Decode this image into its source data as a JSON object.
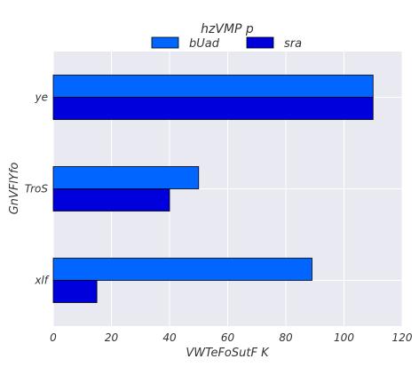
{
  "chart_data": {
    "type": "bar",
    "orientation": "horizontal",
    "categories": [
      "ye",
      "TroS",
      "xlf"
    ],
    "series": [
      {
        "name": "bUad",
        "values": [
          110,
          50,
          89
        ],
        "color": "#0066ff"
      },
      {
        "name": "sra",
        "values": [
          110,
          40,
          15
        ],
        "color": "#0000dd"
      }
    ],
    "legend_title": "hzVMP p",
    "legend_position": "top-center",
    "xlabel": "VWTeFoSutF K",
    "ylabel": "GnVFlYfo",
    "xlim": [
      0,
      120
    ],
    "xticks": [
      0,
      20,
      40,
      60,
      80,
      100,
      120
    ],
    "grid": true,
    "background": "#e9e9f1"
  }
}
